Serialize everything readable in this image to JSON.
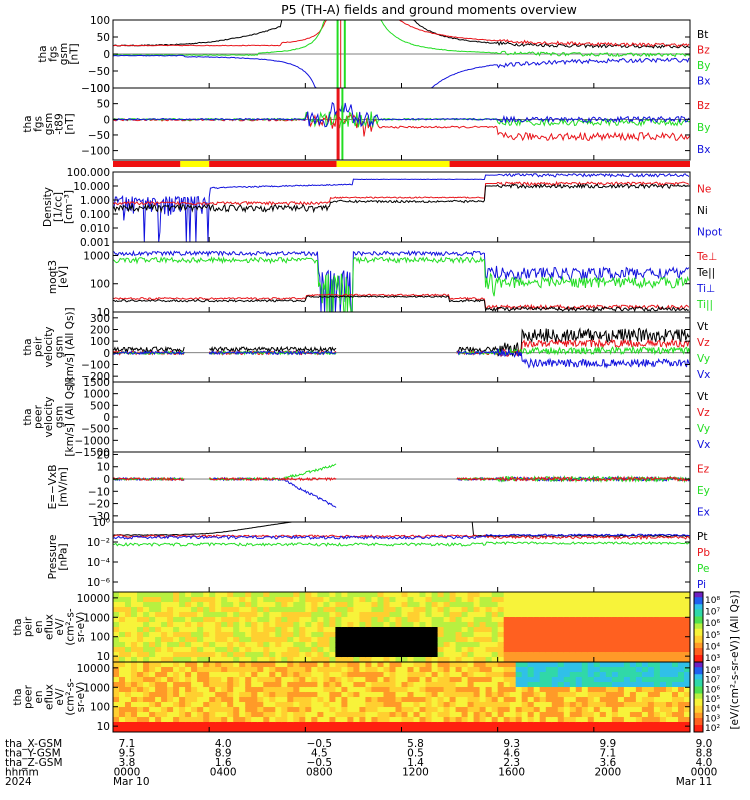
{
  "title": "P5 (TH-A) fields and ground moments overview",
  "colors": {
    "black": "#000000",
    "red": "#e8141a",
    "green": "#22dd22",
    "blue": "#1212dd",
    "yellow": "#ffff00",
    "bar_red": "#ee1111"
  },
  "chart_data": [
    {
      "type": "line",
      "panel": "fgs-gsm",
      "ylabel_lines": [
        "tha",
        "fgs",
        "gsm",
        "[nT]"
      ],
      "ylim": [
        -100,
        100
      ],
      "yticks": [
        "100",
        "50",
        "0",
        "−50",
        "−100"
      ],
      "ytick_values": [
        100,
        50,
        0,
        -50,
        -100
      ],
      "legend": [
        "Bt",
        "Bz",
        "By",
        "Bx"
      ],
      "legend_colors": [
        "#000000",
        "#e8141a",
        "#22dd22",
        "#1212dd"
      ]
    },
    {
      "type": "line",
      "panel": "fgs-gsm-t89",
      "ylabel_lines": [
        "tha",
        "fgs",
        "gsm",
        "-t89",
        "[nT]"
      ],
      "ylim": [
        -130,
        100
      ],
      "yticks": [
        "100",
        "50",
        "0",
        "−50",
        "−100"
      ],
      "ytick_values": [
        100,
        50,
        0,
        -50,
        -100
      ],
      "legend": [
        "Bz",
        "By",
        "Bx"
      ],
      "legend_colors": [
        "#e8141a",
        "#22dd22",
        "#1212dd"
      ]
    },
    {
      "type": "line",
      "panel": "density",
      "ylabel_lines": [
        "Density",
        "[1/cc]",
        "[cm⁻³]"
      ],
      "yscale": "log",
      "ylim": [
        0.001,
        100
      ],
      "yticks": [
        "100.000",
        "10.000",
        "1.000",
        "0.100",
        "0.010",
        "0.001"
      ],
      "legend": [
        "Ne",
        "Ni",
        "Npot"
      ],
      "legend_colors": [
        "#e8141a",
        "#000000",
        "#1212dd"
      ]
    },
    {
      "type": "line",
      "panel": "temperature",
      "ylabel_lines": [
        "moqt3",
        "[eV]"
      ],
      "yscale": "log",
      "ylim": [
        10,
        3000
      ],
      "yticks": [
        "1000",
        "100",
        "10"
      ],
      "legend": [
        "Te⊥",
        "Te||",
        "Ti⊥",
        "Ti||"
      ],
      "legend_colors": [
        "#e8141a",
        "#000000",
        "#1212dd",
        "#22dd22"
      ]
    },
    {
      "type": "line",
      "panel": "peir-velocity",
      "ylabel_lines": [
        "tha",
        "peir",
        "velocity",
        "gsm",
        "[km/s] (All Qs)]"
      ],
      "ylim": [
        -250,
        350
      ],
      "yticks": [
        "300",
        "200",
        "100",
        "0",
        "−100",
        "−200"
      ],
      "ytick_values": [
        300,
        200,
        100,
        0,
        -100,
        -200
      ],
      "legend": [
        "Vt",
        "Vz",
        "Vy",
        "Vx"
      ],
      "legend_colors": [
        "#000000",
        "#e8141a",
        "#22dd22",
        "#1212dd"
      ]
    },
    {
      "type": "line",
      "panel": "peer-velocity",
      "ylabel_lines": [
        "tha",
        "peer",
        "velocity",
        "gsm",
        "[km/s] (All Qs)]"
      ],
      "ylim": [
        -1500,
        1500
      ],
      "yticks": [
        "1500",
        "1000",
        "500",
        "0",
        "−500",
        "−1000",
        "−1500"
      ],
      "ytick_values": [
        1500,
        1000,
        500,
        0,
        -500,
        -1000,
        -1500
      ],
      "legend": [
        "Vt",
        "Vz",
        "Vy",
        "Vx"
      ],
      "legend_colors": [
        "#000000",
        "#e8141a",
        "#22dd22",
        "#1212dd"
      ]
    },
    {
      "type": "line",
      "panel": "efield",
      "ylabel_lines": [
        "E=−VxB",
        "[mV/m]"
      ],
      "ylim": [
        -35,
        22
      ],
      "yticks": [
        "20",
        "10",
        "0",
        "−10",
        "−20",
        "−30"
      ],
      "ytick_values": [
        20,
        10,
        0,
        -10,
        -20,
        -30
      ],
      "legend": [
        "Ez",
        "Ey",
        "Ex"
      ],
      "legend_colors": [
        "#e8141a",
        "#22dd22",
        "#1212dd"
      ]
    },
    {
      "type": "line",
      "panel": "pressure",
      "ylabel_lines": [
        "Pressure",
        "[nPa]"
      ],
      "yscale": "log",
      "ylim": [
        1e-07,
        1
      ],
      "yticks": [
        "10⁰",
        "10⁻²",
        "10⁻⁴",
        "10⁻⁶"
      ],
      "legend": [
        "Pt",
        "Pb",
        "Pe",
        "Pi"
      ],
      "legend_colors": [
        "#000000",
        "#e8141a",
        "#22dd22",
        "#1212dd"
      ]
    },
    {
      "type": "heatmap",
      "panel": "peir-en-eflux",
      "ylabel_lines": [
        "tha",
        "peir",
        "en",
        "eflux",
        "eV/",
        "(cm²-s-",
        "sr-eV)"
      ],
      "yscale": "log",
      "ylim": [
        5,
        20000
      ],
      "yticks": [
        "10000",
        "1000",
        "100",
        "10"
      ],
      "colorbar_ticks": [
        "10⁸",
        "10⁷",
        "10⁶",
        "10⁵",
        "10⁴",
        "10³"
      ]
    },
    {
      "type": "heatmap",
      "panel": "peer-en-eflux",
      "ylabel_lines": [
        "tha",
        "peer",
        "en",
        "eflux",
        "eV/",
        "(cm²-s-",
        "sr-eV)"
      ],
      "yscale": "log",
      "ylim": [
        5,
        20000
      ],
      "yticks": [
        "10000",
        "1000",
        "100",
        "10"
      ],
      "colorbar_ticks": [
        "10⁸",
        "10⁷",
        "10⁶",
        "10⁵",
        "10⁴",
        "10³",
        "10²"
      ]
    }
  ],
  "colorbar_label": "[eV/(cm²-s-sr-eV)] (All Qs)]",
  "xaxis": {
    "row_labels": [
      "tha_X-GSM",
      "tha_Y-GSM",
      "tha_Z-GSM",
      "hhmm",
      "2024"
    ],
    "columns": [
      {
        "x": [
          "7.1",
          "9.5",
          "3.8"
        ],
        "hhmm": "0000",
        "date": "Mar 10"
      },
      {
        "x": [
          "4.0",
          "8.9",
          "1.6"
        ],
        "hhmm": "0400",
        "date": ""
      },
      {
        "x": [
          "−0.5",
          "4.5",
          "−0.5"
        ],
        "hhmm": "0800",
        "date": ""
      },
      {
        "x": [
          "5.8",
          "0.5",
          "1.4"
        ],
        "hhmm": "1200",
        "date": ""
      },
      {
        "x": [
          "9.3",
          "4.6",
          "2.3"
        ],
        "hhmm": "1600",
        "date": ""
      },
      {
        "x": [
          "9.9",
          "7.1",
          "3.6"
        ],
        "hhmm": "2000",
        "date": ""
      },
      {
        "x": [
          "9.0",
          "8.8",
          "4.0"
        ],
        "hhmm": "0000",
        "date": "Mar 11"
      }
    ]
  }
}
